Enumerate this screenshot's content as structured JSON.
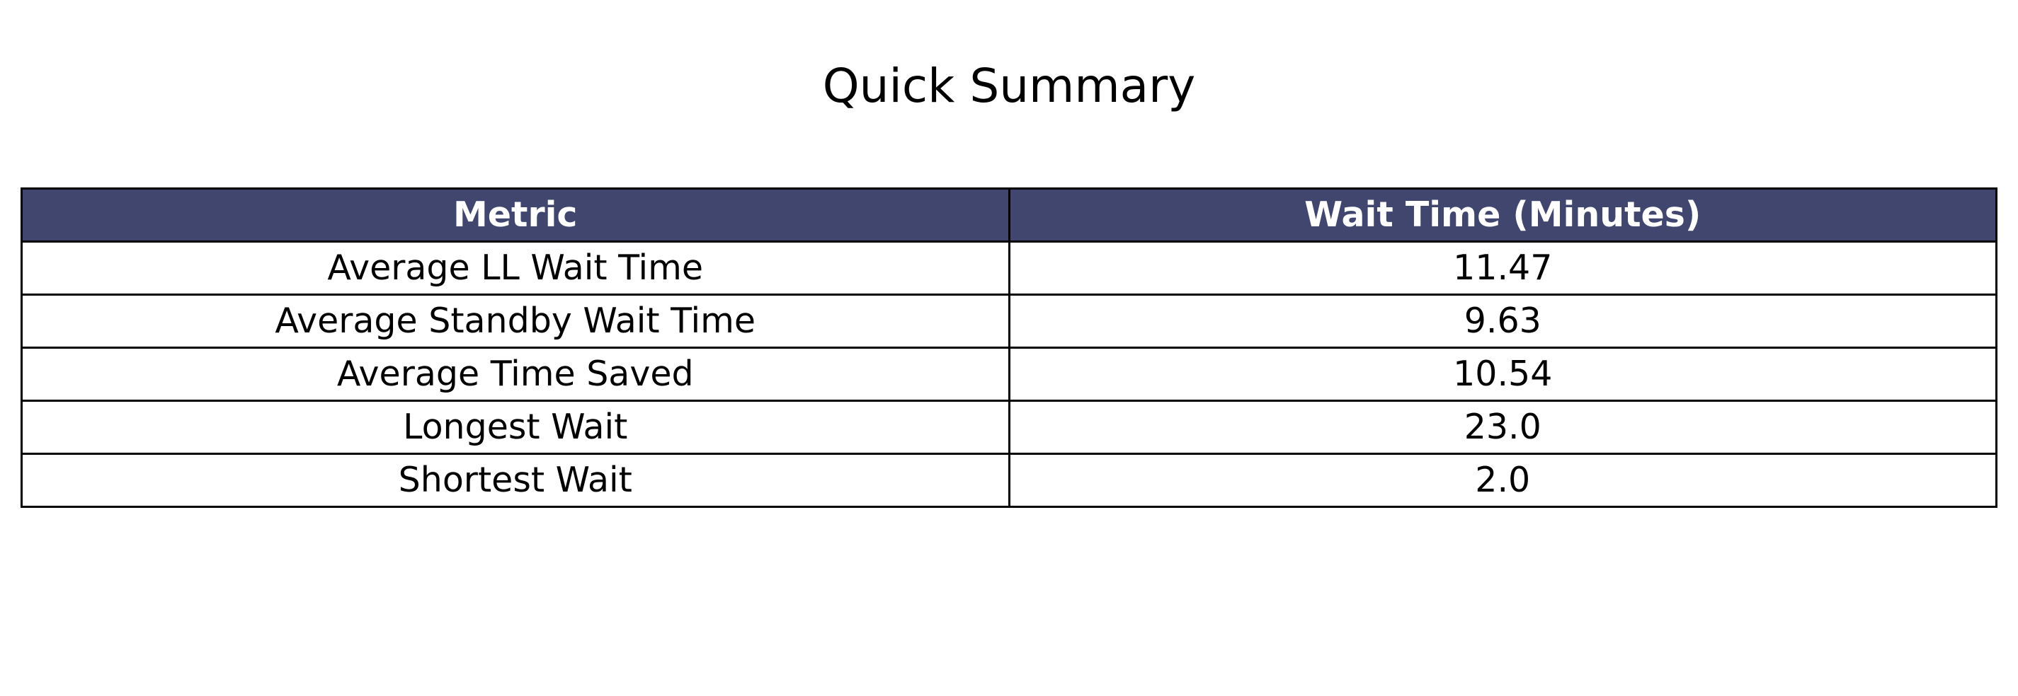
{
  "title": "Quick Summary",
  "header_color": "#40466e",
  "chart_data": {
    "type": "table",
    "title": "Quick Summary",
    "columns": [
      "Metric",
      "Wait Time (Minutes)"
    ],
    "rows": [
      [
        "Average LL Wait Time",
        "11.47"
      ],
      [
        "Average Standby Wait Time",
        "9.63"
      ],
      [
        "Average Time Saved",
        "10.54"
      ],
      [
        "Longest Wait",
        "23.0"
      ],
      [
        "Shortest Wait",
        "2.0"
      ]
    ]
  }
}
